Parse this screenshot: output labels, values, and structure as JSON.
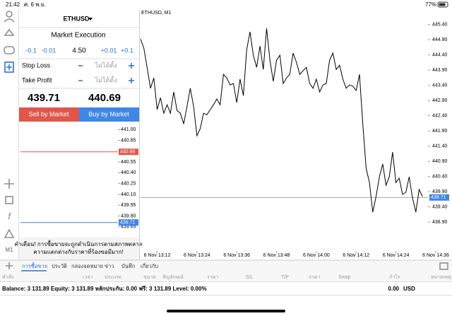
{
  "status_bar": {
    "time": "21:42",
    "date": "ศ. 6 พ.ย.",
    "battery": "77%"
  },
  "toolbar": {
    "timeframe": "M1"
  },
  "order_panel": {
    "symbol": "ETHUSD",
    "execution": "Market Execution",
    "volume_buttons": [
      "-0.1",
      "-0.01",
      "+0.01",
      "+0.1"
    ],
    "volume": "4.50",
    "stop_loss": {
      "label": "Stop Loss",
      "value": "ไม่ได้ตั้ง"
    },
    "take_profit": {
      "label": "Take Profit",
      "value": "ไม่ได้ตั้ง"
    },
    "bid": "439.71",
    "ask": "440.69",
    "sell_button": "Sell by Market",
    "buy_button": "Buy by Market",
    "warning": [
      "คำเตือน! การซื้อขายจะถูกดำเนินการตามสภาพตลาด",
      "ความแตกต่างกับราคาที่ร้องขอมีมาก!"
    ]
  },
  "tick_chart": {
    "ylim": [
      439.56,
      441.08
    ],
    "yticks": [
      {
        "value": 441,
        "label": "441.00"
      },
      440.85,
      440.55,
      {
        "value": 440.4,
        "label": "440.40"
      },
      440.25,
      {
        "value": 440.1,
        "label": "440.10"
      },
      439.95,
      {
        "value": 439.8,
        "label": "439.80"
      },
      439.65
    ],
    "ask_line": {
      "value": 440.69,
      "label": "440.69",
      "color": "#e0564a"
    },
    "bid_line": {
      "value": 439.71,
      "label": "439.71",
      "color": "#3f86e5"
    }
  },
  "chart_data": {
    "type": "line",
    "title": "ETHUSD, M1",
    "grid": false,
    "x": [
      "6 Nov 13:07",
      "6 Nov 13:08",
      "6 Nov 13:09",
      "6 Nov 13:10",
      "6 Nov 13:11",
      "6 Nov 13:12",
      "6 Nov 13:13",
      "6 Nov 13:14",
      "6 Nov 13:15",
      "6 Nov 13:16",
      "6 Nov 13:17",
      "6 Nov 13:18",
      "6 Nov 13:19",
      "6 Nov 13:20",
      "6 Nov 13:21",
      "6 Nov 13:22",
      "6 Nov 13:23",
      "6 Nov 13:24",
      "6 Nov 13:25",
      "6 Nov 13:26",
      "6 Nov 13:27",
      "6 Nov 13:28",
      "6 Nov 13:29",
      "6 Nov 13:30",
      "6 Nov 13:31",
      "6 Nov 13:32",
      "6 Nov 13:33",
      "6 Nov 13:34",
      "6 Nov 13:35",
      "6 Nov 13:36",
      "6 Nov 13:37",
      "6 Nov 13:38",
      "6 Nov 13:39",
      "6 Nov 13:40",
      "6 Nov 13:41",
      "6 Nov 13:42",
      "6 Nov 13:43",
      "6 Nov 13:44",
      "6 Nov 13:45",
      "6 Nov 13:46",
      "6 Nov 13:47",
      "6 Nov 13:48",
      "6 Nov 13:49",
      "6 Nov 13:50",
      "6 Nov 13:51",
      "6 Nov 13:52",
      "6 Nov 13:53",
      "6 Nov 13:54",
      "6 Nov 13:55",
      "6 Nov 13:56",
      "6 Nov 13:57",
      "6 Nov 13:58",
      "6 Nov 13:59",
      "6 Nov 14:00",
      "6 Nov 14:01",
      "6 Nov 14:02",
      "6 Nov 14:03",
      "6 Nov 14:04",
      "6 Nov 14:05",
      "6 Nov 14:06",
      "6 Nov 14:07",
      "6 Nov 14:08",
      "6 Nov 14:09",
      "6 Nov 14:10",
      "6 Nov 14:11",
      "6 Nov 14:12",
      "6 Nov 14:13",
      "6 Nov 14:14",
      "6 Nov 14:15",
      "6 Nov 14:16",
      "6 Nov 14:17",
      "6 Nov 14:18",
      "6 Nov 14:19",
      "6 Nov 14:20",
      "6 Nov 14:21",
      "6 Nov 14:22",
      "6 Nov 14:23",
      "6 Nov 14:24",
      "6 Nov 14:25",
      "6 Nov 14:26",
      "6 Nov 14:27",
      "6 Nov 14:28",
      "6 Nov 14:29",
      "6 Nov 14:30",
      "6 Nov 14:31",
      "6 Nov 14:32"
    ],
    "values": [
      444.92,
      444.62,
      443.97,
      443.3,
      443.64,
      442.6,
      442.99,
      442.48,
      442.76,
      442.48,
      443.18,
      442.57,
      442.48,
      442.13,
      442.71,
      443.3,
      442.71,
      441.74,
      441.97,
      442.48,
      442.43,
      442.6,
      442.76,
      442.95,
      442.76,
      443.76,
      443.64,
      443.41,
      443.46,
      442.83,
      443.6,
      443.06,
      444.57,
      445.16,
      444.39,
      443.99,
      444.69,
      443.92,
      445.27,
      444.23,
      443.53,
      444.23,
      444.39,
      443.46,
      443.64,
      443.76,
      444.46,
      444.16,
      443.76,
      443.88,
      443.99,
      443.46,
      443.3,
      443.6,
      443.18,
      443.41,
      443.46,
      444.23,
      444.46,
      443.92,
      444.06,
      443.6,
      443.3,
      443.41,
      443.37,
      443.23,
      443.76,
      442.13,
      440.67,
      440.2,
      439.23,
      439.74,
      440.39,
      440.81,
      440.11,
      440.39,
      441.2,
      440.2,
      440.34,
      439.81,
      439.88,
      440.39,
      439.69,
      439.23,
      439.97,
      439.74
    ],
    "color": "#000000",
    "xlim": [
      "6 Nov 13:07",
      "6 Nov 14:36"
    ],
    "xticks": [
      "6 Nov 13:12",
      "6 Nov 13:24",
      "6 Nov 13:36",
      "6 Nov 13:48",
      "6 Nov 14:00",
      "6 Nov 14:12",
      "6 Nov 14:24",
      "6 Nov 14:36"
    ],
    "ylim": [
      437.95,
      445.88
    ],
    "yticks": [
      {
        "value": 445.4,
        "label": "445.40"
      },
      {
        "value": 444.9,
        "label": "444.90"
      },
      {
        "value": 444.4,
        "label": "444.40"
      },
      {
        "value": 443.9,
        "label": "443.90"
      },
      {
        "value": 443.4,
        "label": "443.40"
      },
      {
        "value": 442.9,
        "label": "442.90"
      },
      {
        "value": 442.4,
        "label": "442.40"
      },
      {
        "value": 441.9,
        "label": "441.90"
      },
      {
        "value": 441.4,
        "label": "441.40"
      },
      {
        "value": 440.9,
        "label": "440.90"
      },
      {
        "value": 440.4,
        "label": "440.40"
      },
      {
        "value": 439.9,
        "label": "439.90"
      },
      {
        "value": 439.4,
        "label": "439.40"
      },
      {
        "value": 438.9,
        "label": "438.90"
      }
    ],
    "price_line": {
      "value": 439.71,
      "label": "439.71",
      "color": "#3f86e5"
    }
  },
  "terminal": {
    "tabs": [
      "การซื้อขาย",
      "ประวัติ",
      "กล่องจดหมาย",
      "ข่าว",
      "บันทึก",
      "เกี่ยวกับ"
    ],
    "columns": [
      "คำสั่ง",
      "เวลา",
      "ประเภท",
      "ขนาด",
      "สัญลักษณ์",
      "ราคา",
      "S/L",
      "T/P",
      "ราคา",
      "Swap",
      "กำไร",
      "หมายเหตุ"
    ],
    "balance": "Balance: 3 131.89 Equity: 3 131.89 หลักประกัน: 0.00 ฟรี: 3 131.89 Level: 0.00%",
    "profit": "0.00",
    "currency": "USD"
  }
}
